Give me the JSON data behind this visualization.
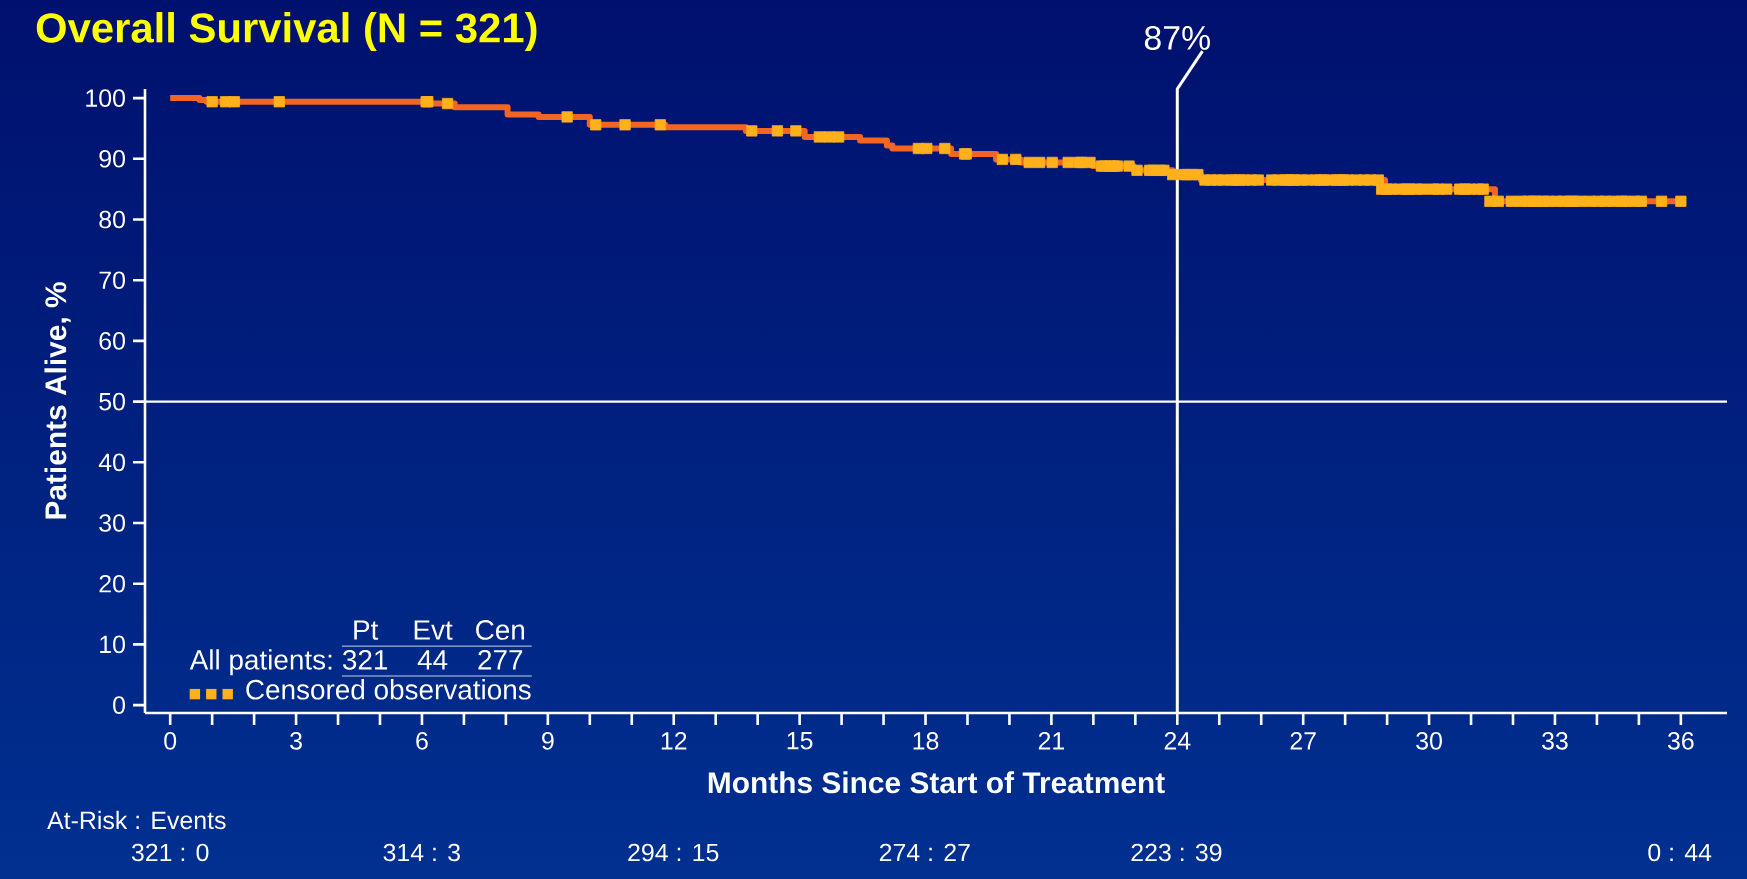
{
  "chart_data": {
    "type": "step",
    "title": "Overall Survival (N = 321)",
    "xlabel": "Months Since Start of Treatment",
    "ylabel": "Patients Alive, %",
    "series": [
      {
        "color": "#f26522",
        "x": [
          0,
          0.7,
          0.87,
          6.15,
          6.78,
          8.04,
          8.78,
          10.0,
          11.8,
          13.72,
          15.12,
          16.44,
          17.08,
          17.21,
          18.61,
          19.68,
          20.27,
          21.98,
          22.96,
          23.89,
          24.56,
          28.95,
          31.57,
          36.0
        ],
        "values": [
          100,
          99.7,
          99.4,
          99.1,
          98.5,
          97.3,
          96.9,
          95.6,
          95.2,
          94.6,
          93.6,
          93.0,
          92.2,
          91.7,
          90.8,
          89.9,
          89.4,
          88.8,
          88.1,
          87.4,
          86.5,
          85.0,
          83.0,
          83.0
        ]
      },
      {
        "type": "scatter",
        "name": "Censored observations",
        "color": "#ffb01a",
        "marker": "square",
        "x": [
          1.0,
          1.32,
          1.53,
          2.6,
          6.1,
          6.14,
          6.61,
          9.46,
          10.14,
          10.84,
          11.68,
          13.86,
          14.47,
          14.91,
          15.47,
          15.7,
          15.93,
          17.83,
          18.03,
          18.46,
          18.93,
          18.97,
          19.83,
          20.15,
          20.47,
          20.72,
          21.02,
          21.4,
          21.66,
          21.72,
          21.92,
          22.19,
          22.27,
          22.4,
          22.49,
          22.57,
          22.85,
          23.04,
          23.34,
          23.42,
          23.59,
          23.68,
          23.89,
          24.14,
          24.23,
          24.36,
          24.49,
          24.66,
          24.8,
          24.95,
          25.1,
          25.29,
          25.37,
          25.49,
          25.6,
          25.77,
          25.93,
          26.25,
          26.4,
          26.56,
          26.64,
          26.72,
          26.8,
          26.95,
          27.1,
          27.3,
          27.4,
          27.48,
          27.64,
          27.8,
          27.87,
          27.95,
          28.07,
          28.27,
          28.45,
          28.61,
          28.79,
          28.87,
          28.99,
          29.1,
          29.3,
          29.45,
          29.54,
          29.7,
          29.85,
          30.1,
          30.22,
          30.42,
          30.73,
          30.85,
          30.97,
          31.17,
          31.29,
          31.45,
          31.65,
          31.96,
          32.2,
          32.36,
          32.48,
          32.56,
          32.72,
          32.84,
          33.04,
          33.2,
          33.36,
          33.43,
          33.6,
          33.83,
          34.03,
          34.2,
          34.4,
          34.59,
          34.67,
          34.9,
          35.06,
          35.54,
          36.0
        ],
        "values": [
          99.4,
          99.4,
          99.4,
          99.4,
          99.4,
          99.4,
          99.1,
          96.9,
          95.6,
          95.6,
          95.6,
          94.6,
          94.6,
          94.6,
          93.6,
          93.6,
          93.6,
          91.7,
          91.7,
          91.7,
          90.8,
          90.8,
          89.9,
          89.9,
          89.4,
          89.4,
          89.4,
          89.4,
          89.4,
          89.4,
          89.4,
          88.8,
          88.8,
          88.8,
          88.8,
          88.8,
          88.8,
          88.1,
          88.1,
          88.1,
          88.1,
          88.1,
          87.4,
          87.4,
          87.4,
          87.4,
          87.4,
          86.5,
          86.5,
          86.5,
          86.5,
          86.5,
          86.5,
          86.5,
          86.5,
          86.5,
          86.5,
          86.5,
          86.5,
          86.5,
          86.5,
          86.5,
          86.5,
          86.5,
          86.5,
          86.5,
          86.5,
          86.5,
          86.5,
          86.5,
          86.5,
          86.5,
          86.5,
          86.5,
          86.5,
          86.5,
          86.5,
          85.0,
          85.0,
          85.0,
          85.0,
          85.0,
          85.0,
          85.0,
          85.0,
          85.0,
          85.0,
          85.0,
          85.0,
          85.0,
          85.0,
          85.0,
          85.0,
          83.0,
          83.0,
          83.0,
          83.0,
          83.0,
          83.0,
          83.0,
          83.0,
          83.0,
          83.0,
          83.0,
          83.0,
          83.0,
          83.0,
          83.0,
          83.0,
          83.0,
          83.0,
          83.0,
          83.0,
          83.0,
          83.0,
          83.0,
          83.0
        ]
      }
    ],
    "xlim": [
      -0.6,
      37.1
    ],
    "ylim": [
      -1.3,
      101.5
    ],
    "xticks": [
      0,
      {
        "value": 1,
        "label": null
      },
      {
        "value": 2,
        "label": null
      },
      3,
      {
        "value": 4,
        "label": null
      },
      {
        "value": 5,
        "label": null
      },
      6,
      {
        "value": 7,
        "label": null
      },
      {
        "value": 8,
        "label": null
      },
      9,
      {
        "value": 10,
        "label": null
      },
      {
        "value": 11,
        "label": null
      },
      12,
      {
        "value": 13,
        "label": null
      },
      {
        "value": 14,
        "label": null
      },
      15,
      {
        "value": 16,
        "label": null
      },
      {
        "value": 17,
        "label": null
      },
      18,
      {
        "value": 19,
        "label": null
      },
      {
        "value": 20,
        "label": null
      },
      21,
      {
        "value": 22,
        "label": null
      },
      {
        "value": 23,
        "label": null
      },
      24,
      {
        "value": 25,
        "label": null
      },
      {
        "value": 26,
        "label": null
      },
      27,
      {
        "value": 28,
        "label": null
      },
      {
        "value": 29,
        "label": null
      },
      30,
      {
        "value": 31,
        "label": null
      },
      {
        "value": 32,
        "label": null
      },
      33,
      {
        "value": 34,
        "label": null
      },
      {
        "value": 35,
        "label": null
      },
      36
    ],
    "yticks": [
      0,
      10,
      20,
      30,
      40,
      50,
      60,
      70,
      80,
      90,
      100
    ],
    "ref_lines": [
      {
        "axis": "x",
        "value": 24,
        "color": "#ffffff"
      },
      {
        "axis": "y",
        "value": 50,
        "color": "#ffffff"
      }
    ],
    "legend": "bottom left",
    "annotations": [
      "Pt",
      "Evt",
      "Cen",
      "All patients:",
      "321",
      "44",
      "277",
      "At-Risk : Events",
      "321 : 0",
      "314 : 3",
      "294 : 15",
      "274 : 27",
      "223 : 39",
      "0 : 44",
      "87%"
    ]
  }
}
